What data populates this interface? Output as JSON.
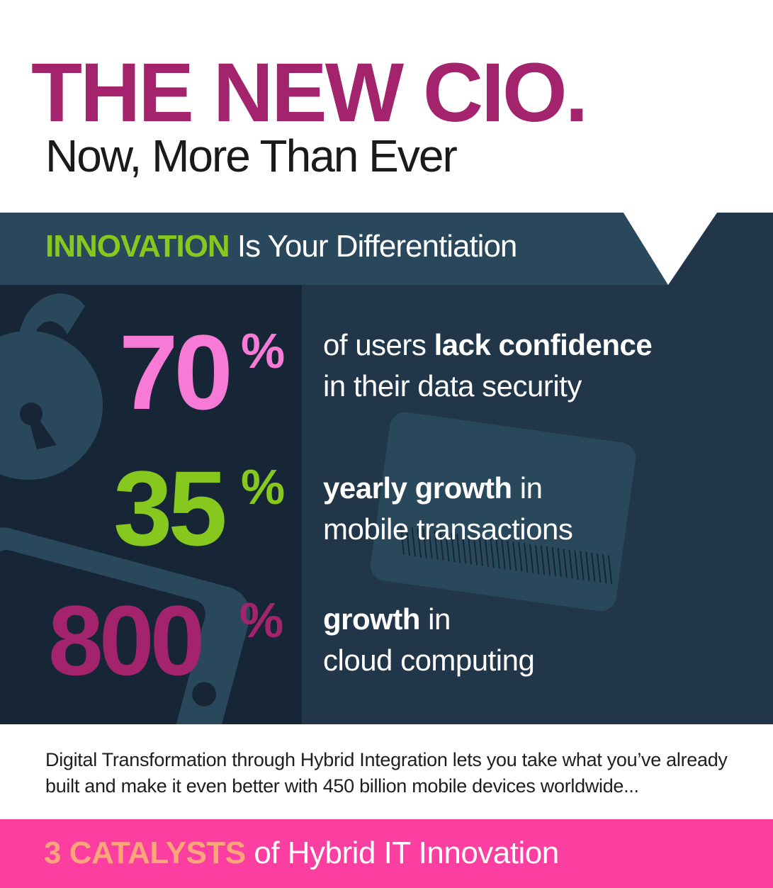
{
  "header": {
    "title": "THE NEW CIO.",
    "subtitle": "Now, More Than Ever"
  },
  "banner": {
    "highlight": "INNOVATION",
    "rest": " Is Your Differentiation"
  },
  "stats": [
    {
      "number": "70",
      "unit": "%",
      "desc_line1_pre": "of users ",
      "desc_line1_bold": "lack confidence",
      "desc_line1_post": "",
      "desc_line2": "in their data security"
    },
    {
      "number": "35",
      "unit": "%",
      "desc_line1_pre": "",
      "desc_line1_bold": "yearly growth",
      "desc_line1_post": " in",
      "desc_line2": "mobile transactions"
    },
    {
      "number": "800",
      "unit": "%",
      "desc_line1_pre": "",
      "desc_line1_bold": "growth",
      "desc_line1_post": " in",
      "desc_line2": "cloud computing"
    }
  ],
  "body": {
    "text": "Digital Transformation through Hybrid Integration lets you take what you’ve already built and make it even better with 450 billion mobile devices worldwide..."
  },
  "footer": {
    "highlight": "3 CATALYSTS",
    "rest": " of Hybrid IT Innovation"
  },
  "icons": [
    "padlock-icon",
    "credit-card-icon",
    "mobile-phone-icon"
  ],
  "colors": {
    "title": "#a3246c",
    "subtitle": "#1a1a1a",
    "banner_bg": "#2a485c",
    "banner_highlight": "#86c81e",
    "banner_text": "#ffffff",
    "stats_left_bg": "#172636",
    "stats_right_bg": "#213649",
    "icon_fill": "#2a485c",
    "stat1": "#f77ad6",
    "stat2": "#86c81e",
    "stat3": "#a3246c",
    "stat_desc": "#ffffff",
    "footer_bg": "#fb3fa0",
    "footer_highlight": "#ffa57a",
    "footer_text": "#ffffff"
  }
}
